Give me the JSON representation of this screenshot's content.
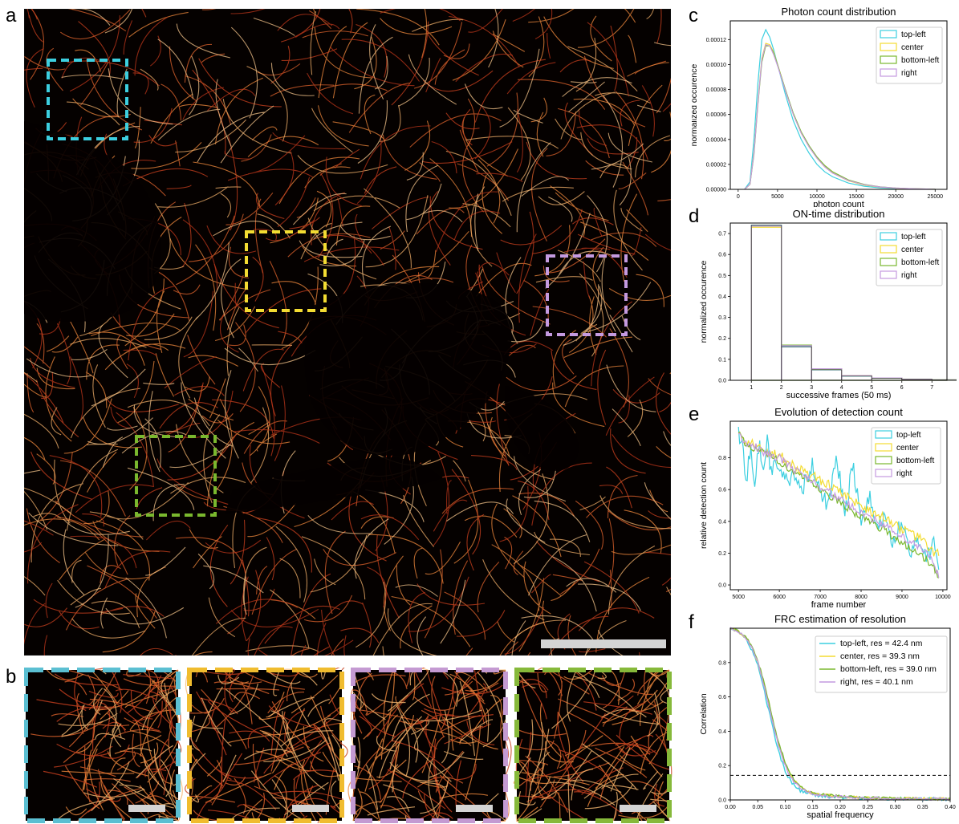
{
  "panel_letters": {
    "a": "a",
    "b": "b",
    "c": "c",
    "d": "d",
    "e": "e",
    "f": "f"
  },
  "colors": {
    "top_left": "#3ccfe0",
    "center": "#f3dc32",
    "bottom_left": "#7ab82e",
    "right": "#c49ae0",
    "inset_cyan": "#5bbfd2",
    "inset_yellow": "#f0bc2e",
    "inset_lilac": "#c49ad2",
    "inset_green": "#86b93a",
    "scalebar": "#d4d4d4",
    "filament": "#d9572a"
  },
  "chart_data": [
    {
      "panel": "c",
      "type": "line",
      "title": "Photon count distribution",
      "xlabel": "photon count",
      "ylabel": "normalized occurence",
      "xlim": [
        -1000,
        26500
      ],
      "ylim": [
        0,
        0.000135
      ],
      "xticks": [
        0,
        5000,
        10000,
        15000,
        20000,
        25000
      ],
      "xtick_labels": [
        "0",
        "5000",
        "10000",
        "15000",
        "20000",
        "25000"
      ],
      "yticks": [
        0,
        2e-05,
        4e-05,
        6e-05,
        8e-05,
        0.0001,
        0.00012
      ],
      "ytick_labels": [
        "0.00000",
        "0.00002",
        "0.00004",
        "0.00006",
        "0.00008",
        "0.00010",
        "0.00012"
      ],
      "legend_position": "top-right",
      "series": [
        {
          "name": "top-left",
          "x": [
            800,
            1500,
            2000,
            2500,
            3000,
            3500,
            4000,
            4500,
            5000,
            5500,
            6000,
            7000,
            8000,
            9000,
            10000,
            11000,
            12000,
            14000,
            16000,
            18000,
            20000,
            22000,
            25000
          ],
          "values": [
            0,
            6e-06,
            4e-05,
            8.5e-05,
            0.00012,
            0.000128,
            0.000122,
            0.000112,
            0.0001,
            8.8e-05,
            7.6e-05,
            5.5e-05,
            4e-05,
            2.9e-05,
            2e-05,
            1.4e-05,
            1e-05,
            5e-06,
            2.5e-06,
            1.2e-06,
            6e-07,
            3e-07,
            1e-07
          ]
        },
        {
          "name": "center",
          "x": [
            800,
            1500,
            2000,
            2500,
            3000,
            3500,
            4000,
            4500,
            5000,
            5500,
            6000,
            7000,
            8000,
            9000,
            10000,
            11000,
            12000,
            14000,
            16000,
            18000,
            20000,
            22000,
            25000
          ],
          "values": [
            0,
            4e-06,
            3e-05,
            7e-05,
            0.000105,
            0.000117,
            0.000116,
            0.00011,
            0.0001,
            9e-05,
            7.9e-05,
            6e-05,
            4.5e-05,
            3.4e-05,
            2.5e-05,
            1.8e-05,
            1.3e-05,
            6.8e-06,
            3.5e-06,
            1.8e-06,
            9e-07,
            4e-07,
            1e-07
          ]
        },
        {
          "name": "bottom-left",
          "x": [
            800,
            1500,
            2000,
            2500,
            3000,
            3500,
            4000,
            4500,
            5000,
            5500,
            6000,
            7000,
            8000,
            9000,
            10000,
            11000,
            12000,
            14000,
            16000,
            18000,
            20000,
            22000,
            25000
          ],
          "values": [
            0,
            4e-06,
            2.8e-05,
            6.8e-05,
            0.000102,
            0.000115,
            0.000115,
            0.000109,
            0.0001,
            9e-05,
            8e-05,
            6.1e-05,
            4.6e-05,
            3.5e-05,
            2.6e-05,
            1.9e-05,
            1.4e-05,
            7.5e-06,
            4e-06,
            2e-06,
            1e-06,
            5e-07,
            1e-07
          ]
        },
        {
          "name": "right",
          "x": [
            800,
            1500,
            2000,
            2500,
            3000,
            3500,
            4000,
            4500,
            5000,
            5500,
            6000,
            7000,
            8000,
            9000,
            10000,
            11000,
            12000,
            14000,
            16000,
            18000,
            20000,
            22000,
            25000
          ],
          "values": [
            0,
            4e-06,
            2.9e-05,
            6.9e-05,
            0.000104,
            0.000116,
            0.000115,
            0.000108,
            9.9e-05,
            8.9e-05,
            7.9e-05,
            6e-05,
            4.5e-05,
            3.4e-05,
            2.5e-05,
            1.8e-05,
            1.3e-05,
            7e-06,
            3.7e-06,
            1.9e-06,
            1e-06,
            5e-07,
            1e-07
          ]
        }
      ]
    },
    {
      "panel": "d",
      "type": "bar",
      "title": "ON-time distribution",
      "xlabel": "successive frames (50 ms)",
      "ylabel": "normalized occurence",
      "xlim": [
        0.3,
        7.5
      ],
      "ylim": [
        0,
        0.75
      ],
      "xticks": [
        1,
        2,
        3,
        4,
        5,
        6,
        7
      ],
      "xtick_labels": [
        "1",
        "2",
        "3",
        "4",
        "5",
        "6",
        "7"
      ],
      "yticks": [
        0,
        0.1,
        0.2,
        0.3,
        0.4,
        0.5,
        0.6,
        0.7
      ],
      "ytick_labels": [
        "0.0",
        "0.1",
        "0.2",
        "0.3",
        "0.4",
        "0.5",
        "0.6",
        "0.7"
      ],
      "legend_position": "top-right",
      "categories": [
        "1",
        "2",
        "3",
        "4",
        "5",
        "6",
        "7"
      ],
      "series": [
        {
          "name": "top-left",
          "values": [
            0.74,
            0.16,
            0.05,
            0.02,
            0.01,
            0.005,
            0.002
          ]
        },
        {
          "name": "center",
          "values": [
            0.73,
            0.165,
            0.055,
            0.022,
            0.011,
            0.005,
            0.002
          ]
        },
        {
          "name": "bottom-left",
          "values": [
            0.735,
            0.168,
            0.054,
            0.021,
            0.011,
            0.005,
            0.002
          ]
        },
        {
          "name": "right",
          "values": [
            0.735,
            0.165,
            0.055,
            0.022,
            0.011,
            0.005,
            0.002
          ]
        }
      ]
    },
    {
      "panel": "e",
      "type": "line",
      "title": "Evolution of detection count",
      "xlabel": "frame number",
      "ylabel": "relative detection count",
      "xlim": [
        4800,
        10100
      ],
      "ylim": [
        -0.03,
        1.03
      ],
      "xticks": [
        5000,
        6000,
        7000,
        8000,
        9000,
        10000
      ],
      "xtick_labels": [
        "5000",
        "6000",
        "7000",
        "8000",
        "9000",
        "10000"
      ],
      "yticks": [
        0,
        0.2,
        0.4,
        0.6,
        0.8
      ],
      "ytick_labels": [
        "0.0",
        "0.2",
        "0.4",
        "0.6",
        "0.8"
      ],
      "legend_position": "top-right",
      "series": [
        {
          "name": "top-left",
          "x": [
            5000,
            5100,
            5200,
            5300,
            5400,
            5500,
            5600,
            5700,
            5800,
            5900,
            6000,
            6200,
            6400,
            6600,
            6800,
            7000,
            7200,
            7400,
            7600,
            7800,
            8000,
            8200,
            8400,
            8600,
            8800,
            9000,
            9200,
            9400,
            9600,
            9800,
            9900
          ],
          "values": [
            0.95,
            0.85,
            0.65,
            0.88,
            0.62,
            0.9,
            0.7,
            0.9,
            0.72,
            0.82,
            0.68,
            0.66,
            0.7,
            0.62,
            0.75,
            0.6,
            0.5,
            0.8,
            0.45,
            0.75,
            0.4,
            0.55,
            0.35,
            0.45,
            0.25,
            0.4,
            0.2,
            0.3,
            0.15,
            0.28,
            0.05
          ]
        },
        {
          "name": "center",
          "x": [
            5000,
            5200,
            5400,
            5600,
            5800,
            6000,
            6200,
            6400,
            6600,
            6800,
            7000,
            7200,
            7400,
            7600,
            7800,
            8000,
            8200,
            8400,
            8600,
            8800,
            9000,
            9200,
            9400,
            9600,
            9800,
            9900
          ],
          "values": [
            0.95,
            0.9,
            0.88,
            0.86,
            0.83,
            0.82,
            0.77,
            0.74,
            0.72,
            0.69,
            0.66,
            0.63,
            0.6,
            0.57,
            0.53,
            0.5,
            0.47,
            0.44,
            0.42,
            0.39,
            0.35,
            0.32,
            0.3,
            0.25,
            0.2,
            0.2
          ]
        },
        {
          "name": "bottom-left",
          "x": [
            5000,
            5200,
            5400,
            5600,
            5800,
            6000,
            6200,
            6400,
            6600,
            6800,
            7000,
            7200,
            7400,
            7600,
            7800,
            8000,
            8200,
            8400,
            8600,
            8800,
            9000,
            9200,
            9400,
            9600,
            9800,
            9900
          ],
          "values": [
            0.95,
            0.88,
            0.86,
            0.83,
            0.8,
            0.78,
            0.74,
            0.7,
            0.67,
            0.63,
            0.6,
            0.56,
            0.53,
            0.5,
            0.46,
            0.43,
            0.4,
            0.37,
            0.34,
            0.3,
            0.27,
            0.23,
            0.2,
            0.16,
            0.1,
            0.03
          ]
        },
        {
          "name": "right",
          "x": [
            5000,
            5200,
            5400,
            5600,
            5800,
            6000,
            6200,
            6400,
            6600,
            6800,
            7000,
            7200,
            7400,
            7600,
            7800,
            8000,
            8200,
            8400,
            8600,
            8800,
            9000,
            9200,
            9400,
            9600,
            9800,
            9900
          ],
          "values": [
            0.95,
            0.89,
            0.87,
            0.84,
            0.82,
            0.8,
            0.76,
            0.72,
            0.69,
            0.66,
            0.62,
            0.59,
            0.55,
            0.52,
            0.49,
            0.46,
            0.43,
            0.4,
            0.37,
            0.33,
            0.3,
            0.27,
            0.24,
            0.2,
            0.12,
            0.05
          ]
        }
      ]
    },
    {
      "panel": "f",
      "type": "line",
      "title": "FRC estimation of resolution",
      "xlabel": "spatial frequency",
      "ylabel": "Correlation",
      "xlim": [
        0,
        0.4
      ],
      "ylim": [
        0,
        1.0
      ],
      "xticks": [
        0,
        0.05,
        0.1,
        0.15,
        0.2,
        0.25,
        0.3,
        0.35,
        0.4
      ],
      "xtick_labels": [
        "0.00",
        "0.05",
        "0.10",
        "0.15",
        "0.20",
        "0.25",
        "0.30",
        "0.35",
        "0.40"
      ],
      "yticks": [
        0,
        0.2,
        0.4,
        0.6,
        0.8
      ],
      "ytick_labels": [
        "0.0",
        "0.2",
        "0.4",
        "0.6",
        "0.8"
      ],
      "threshold": 0.143,
      "legend_position": "top-right",
      "series": [
        {
          "name": "top-left, res = 42.4 nm",
          "x": [
            0,
            0.01,
            0.02,
            0.03,
            0.04,
            0.05,
            0.06,
            0.07,
            0.08,
            0.09,
            0.1,
            0.11,
            0.12,
            0.13,
            0.14,
            0.15,
            0.17,
            0.2,
            0.25,
            0.3,
            0.35,
            0.4
          ],
          "values": [
            1.0,
            0.99,
            0.97,
            0.93,
            0.87,
            0.78,
            0.66,
            0.52,
            0.38,
            0.26,
            0.17,
            0.11,
            0.07,
            0.05,
            0.04,
            0.03,
            0.02,
            0.015,
            0.01,
            0.008,
            0.006,
            0.005
          ]
        },
        {
          "name": "center, res = 39.3 nm",
          "x": [
            0,
            0.01,
            0.02,
            0.03,
            0.04,
            0.05,
            0.06,
            0.07,
            0.08,
            0.09,
            0.1,
            0.11,
            0.12,
            0.13,
            0.14,
            0.15,
            0.17,
            0.2,
            0.25,
            0.3,
            0.35,
            0.4
          ],
          "values": [
            1.0,
            0.99,
            0.97,
            0.94,
            0.88,
            0.8,
            0.69,
            0.56,
            0.42,
            0.3,
            0.21,
            0.14,
            0.1,
            0.07,
            0.05,
            0.04,
            0.03,
            0.02,
            0.012,
            0.009,
            0.007,
            0.005
          ]
        },
        {
          "name": "bottom-left, res = 39.0 nm",
          "x": [
            0,
            0.01,
            0.02,
            0.03,
            0.04,
            0.05,
            0.06,
            0.07,
            0.08,
            0.09,
            0.1,
            0.11,
            0.12,
            0.13,
            0.14,
            0.15,
            0.17,
            0.2,
            0.25,
            0.3,
            0.35,
            0.4
          ],
          "values": [
            1.0,
            0.99,
            0.97,
            0.94,
            0.89,
            0.81,
            0.7,
            0.57,
            0.43,
            0.31,
            0.22,
            0.15,
            0.1,
            0.075,
            0.055,
            0.04,
            0.03,
            0.02,
            0.012,
            0.009,
            0.007,
            0.005
          ]
        },
        {
          "name": "right, res = 40.1 nm",
          "x": [
            0,
            0.01,
            0.02,
            0.03,
            0.04,
            0.05,
            0.06,
            0.07,
            0.08,
            0.09,
            0.1,
            0.11,
            0.12,
            0.13,
            0.14,
            0.15,
            0.17,
            0.2,
            0.25,
            0.3,
            0.35,
            0.4
          ],
          "values": [
            1.0,
            0.99,
            0.97,
            0.93,
            0.88,
            0.8,
            0.68,
            0.55,
            0.41,
            0.29,
            0.2,
            0.13,
            0.09,
            0.065,
            0.05,
            0.035,
            0.025,
            0.018,
            0.011,
            0.008,
            0.006,
            0.005
          ]
        }
      ]
    }
  ]
}
